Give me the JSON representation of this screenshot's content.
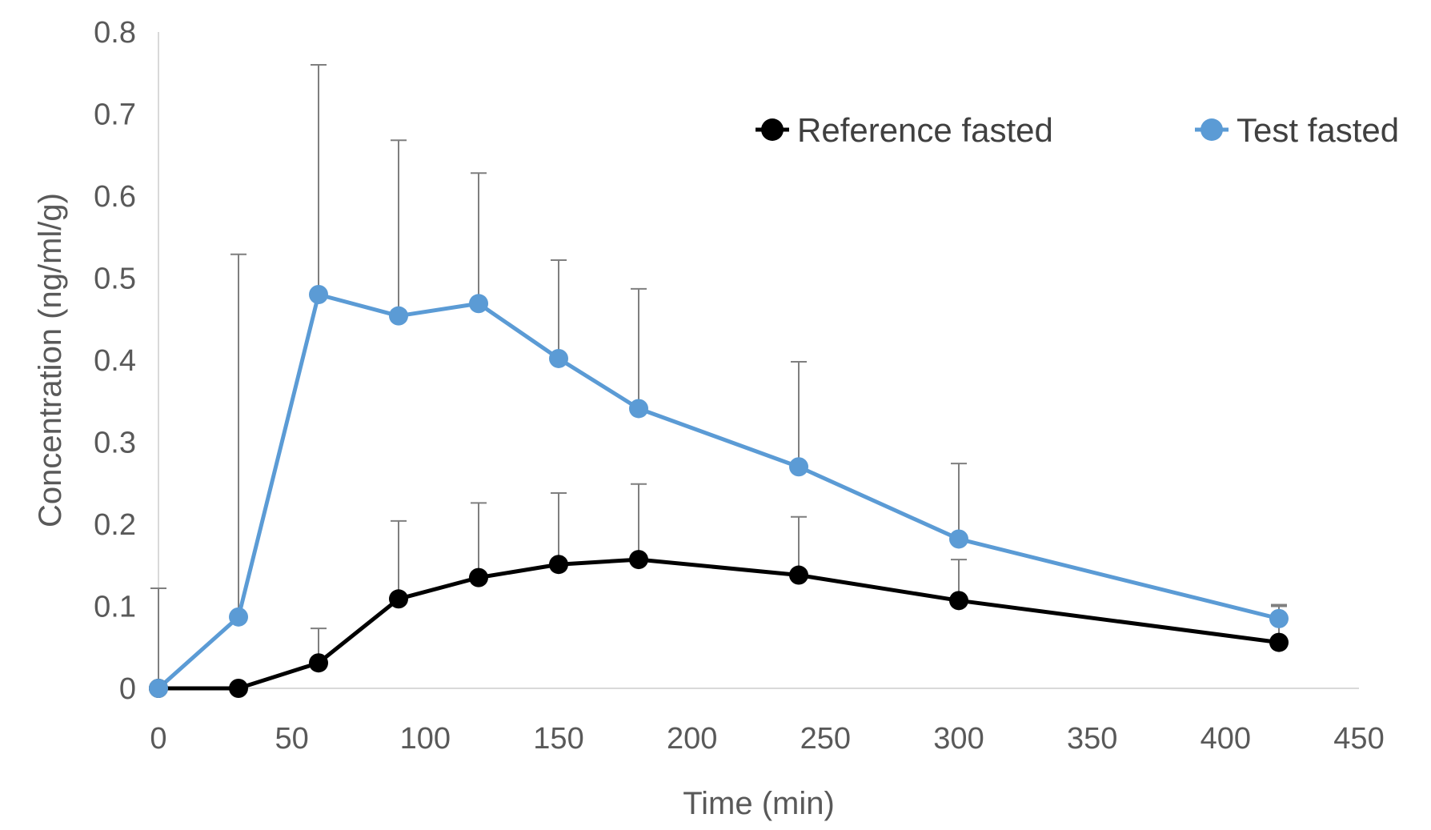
{
  "chart_data": {
    "type": "line",
    "title": "",
    "xlabel": "Time (min)",
    "ylabel": "Concentration (ng/ml/g)",
    "xlim": [
      0,
      450
    ],
    "ylim": [
      0,
      0.8
    ],
    "x_ticks": [
      "0",
      "50",
      "100",
      "150",
      "200",
      "250",
      "300",
      "350",
      "400",
      "450"
    ],
    "y_ticks": [
      "0",
      "0.1",
      "0.2",
      "0.3",
      "0.4",
      "0.5",
      "0.6",
      "0.7",
      "0.8"
    ],
    "grid": false,
    "legend_position": "top-right",
    "series": [
      {
        "name": "Reference fasted",
        "color": "#000000",
        "x": [
          0,
          30,
          60,
          90,
          120,
          150,
          180,
          240,
          300,
          420
        ],
        "y": [
          0,
          0,
          0.031,
          0.109,
          0.135,
          0.151,
          0.157,
          0.138,
          0.107,
          0.056
        ],
        "error_upper": [
          0,
          0,
          0.073,
          0.204,
          0.226,
          0.238,
          0.249,
          0.209,
          0.157,
          0.1
        ]
      },
      {
        "name": "Test fasted",
        "color": "#5b9bd5",
        "x": [
          0,
          30,
          60,
          90,
          120,
          150,
          180,
          240,
          300,
          420
        ],
        "y": [
          0,
          0.087,
          0.48,
          0.454,
          0.469,
          0.402,
          0.341,
          0.27,
          0.182,
          0.085
        ],
        "error_upper": [
          0.122,
          0.529,
          0.76,
          0.668,
          0.628,
          0.522,
          0.487,
          0.398,
          0.274,
          0.102
        ]
      }
    ]
  }
}
